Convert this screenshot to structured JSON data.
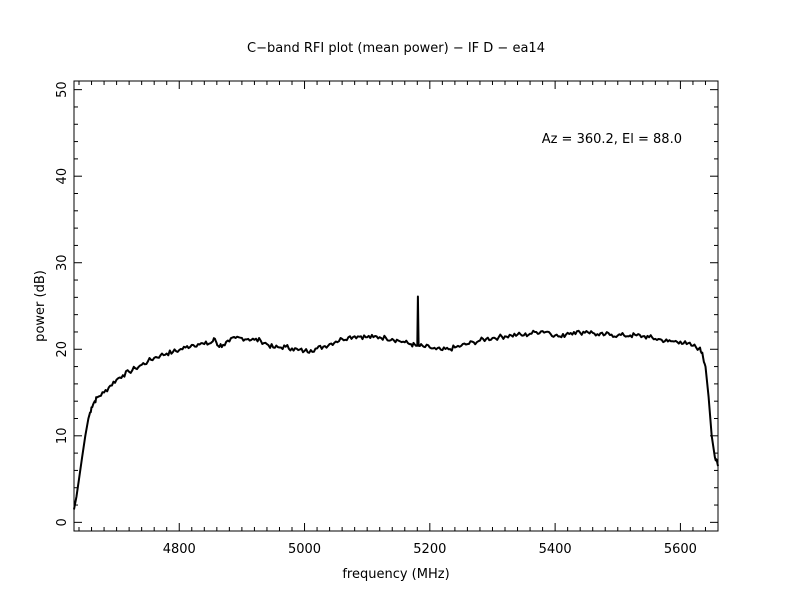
{
  "chart_data": {
    "type": "line",
    "title": "C−band RFI plot (mean power) − IF D − ea14",
    "xlabel": "frequency (MHz)",
    "ylabel": "power (dB)",
    "annotation": "Az = 360.2, El = 88.0",
    "xlim": [
      4632,
      5660
    ],
    "ylim": [
      -1,
      51
    ],
    "x_ticks": [
      4800,
      5000,
      5200,
      5400,
      5600
    ],
    "y_ticks": [
      0,
      10,
      20,
      30,
      40,
      50
    ],
    "grid": false,
    "series": [
      {
        "color": "#000000",
        "points": [
          [
            4632,
            1.5
          ],
          [
            4636,
            3.0
          ],
          [
            4640,
            5.0
          ],
          [
            4645,
            7.5
          ],
          [
            4650,
            10.0
          ],
          [
            4655,
            12.0
          ],
          [
            4660,
            13.3
          ],
          [
            4665,
            14.0
          ],
          [
            4670,
            14.5
          ],
          [
            4680,
            15.0
          ],
          [
            4690,
            15.8
          ],
          [
            4700,
            16.5
          ],
          [
            4710,
            17.0
          ],
          [
            4720,
            17.4
          ],
          [
            4730,
            17.8
          ],
          [
            4740,
            18.2
          ],
          [
            4750,
            18.6
          ],
          [
            4760,
            19.0
          ],
          [
            4770,
            19.3
          ],
          [
            4780,
            19.5
          ],
          [
            4790,
            19.7
          ],
          [
            4800,
            19.9
          ],
          [
            4810,
            20.2
          ],
          [
            4820,
            20.5
          ],
          [
            4830,
            20.6
          ],
          [
            4840,
            20.6
          ],
          [
            4850,
            20.7
          ],
          [
            4857,
            21.2
          ],
          [
            4862,
            20.4
          ],
          [
            4870,
            20.5
          ],
          [
            4880,
            20.9
          ],
          [
            4890,
            21.3
          ],
          [
            4900,
            21.3
          ],
          [
            4910,
            21.2
          ],
          [
            4920,
            21.1
          ],
          [
            4930,
            21.0
          ],
          [
            4940,
            20.6
          ],
          [
            4950,
            20.2
          ],
          [
            4960,
            20.2
          ],
          [
            4970,
            20.3
          ],
          [
            4980,
            20.1
          ],
          [
            4990,
            19.9
          ],
          [
            5000,
            19.8
          ],
          [
            5010,
            19.9
          ],
          [
            5020,
            20.1
          ],
          [
            5030,
            20.3
          ],
          [
            5040,
            20.6
          ],
          [
            5050,
            20.9
          ],
          [
            5060,
            21.2
          ],
          [
            5070,
            21.4
          ],
          [
            5080,
            21.5
          ],
          [
            5090,
            21.5
          ],
          [
            5100,
            21.4
          ],
          [
            5110,
            21.4
          ],
          [
            5120,
            21.4
          ],
          [
            5130,
            21.3
          ],
          [
            5140,
            21.2
          ],
          [
            5150,
            21.0
          ],
          [
            5160,
            20.8
          ],
          [
            5170,
            20.6
          ],
          [
            5178,
            20.4
          ],
          [
            5180,
            20.4
          ],
          [
            5181,
            26.1
          ],
          [
            5182,
            20.4
          ],
          [
            5190,
            20.3
          ],
          [
            5200,
            20.2
          ],
          [
            5210,
            20.0
          ],
          [
            5220,
            19.9
          ],
          [
            5230,
            20.0
          ],
          [
            5240,
            20.2
          ],
          [
            5250,
            20.4
          ],
          [
            5260,
            20.6
          ],
          [
            5270,
            20.8
          ],
          [
            5280,
            21.0
          ],
          [
            5290,
            21.2
          ],
          [
            5300,
            21.3
          ],
          [
            5310,
            21.4
          ],
          [
            5320,
            21.5
          ],
          [
            5330,
            21.6
          ],
          [
            5340,
            21.7
          ],
          [
            5350,
            21.6
          ],
          [
            5360,
            21.8
          ],
          [
            5370,
            22.0
          ],
          [
            5380,
            22.1
          ],
          [
            5390,
            22.0
          ],
          [
            5400,
            21.6
          ],
          [
            5410,
            21.4
          ],
          [
            5420,
            21.9
          ],
          [
            5430,
            22.0
          ],
          [
            5440,
            21.9
          ],
          [
            5450,
            22.1
          ],
          [
            5460,
            21.9
          ],
          [
            5470,
            21.6
          ],
          [
            5480,
            21.7
          ],
          [
            5490,
            21.7
          ],
          [
            5500,
            21.6
          ],
          [
            5510,
            21.6
          ],
          [
            5520,
            21.6
          ],
          [
            5530,
            21.6
          ],
          [
            5540,
            21.5
          ],
          [
            5550,
            21.4
          ],
          [
            5560,
            21.2
          ],
          [
            5570,
            21.1
          ],
          [
            5580,
            20.9
          ],
          [
            5590,
            20.9
          ],
          [
            5600,
            20.9
          ],
          [
            5610,
            20.6
          ],
          [
            5620,
            20.4
          ],
          [
            5630,
            20.1
          ],
          [
            5635,
            19.6
          ],
          [
            5640,
            18.0
          ],
          [
            5645,
            14.5
          ],
          [
            5650,
            10.0
          ],
          [
            5655,
            7.5
          ],
          [
            5660,
            6.5
          ]
        ]
      }
    ]
  }
}
